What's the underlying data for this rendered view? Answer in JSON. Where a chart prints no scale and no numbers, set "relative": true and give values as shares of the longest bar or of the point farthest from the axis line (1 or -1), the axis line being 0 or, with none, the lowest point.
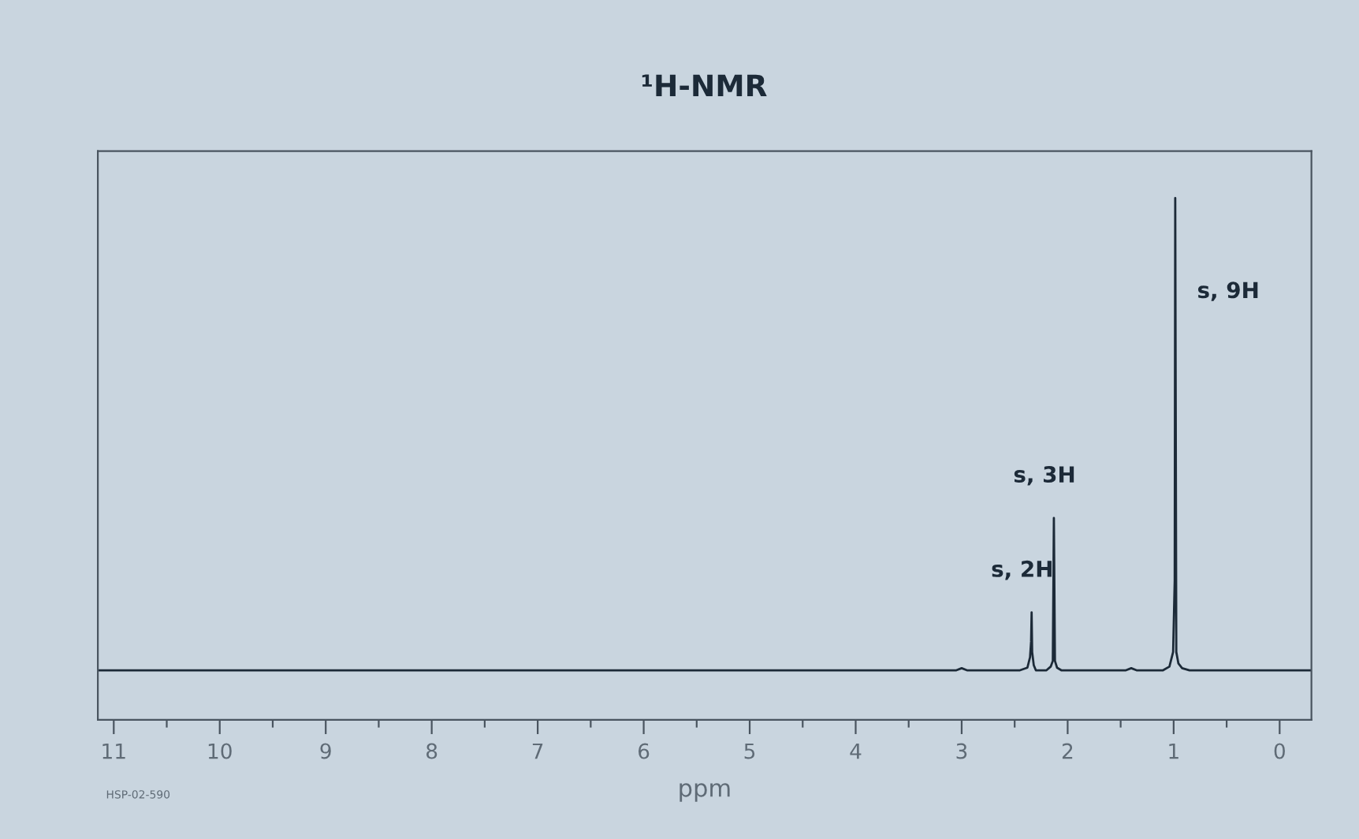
{
  "chart_data": {
    "type": "line",
    "title": "¹H-NMR",
    "xlabel": "ppm",
    "relative": true,
    "series": [
      {
        "color": "#1c2a38",
        "x": [
          11.15,
          6.0,
          3.05,
          3.0,
          2.95,
          2.45,
          2.38,
          2.355,
          2.345,
          2.34,
          2.335,
          2.32,
          2.3,
          2.2,
          2.16,
          2.14,
          2.13,
          2.12,
          2.1,
          2.06,
          1.45,
          1.4,
          1.35,
          1.1,
          1.04,
          1.005,
          0.99,
          0.985,
          0.975,
          0.955,
          0.92,
          0.85,
          -0.3
        ],
        "values": [
          0.095,
          0.095,
          0.095,
          0.099,
          0.095,
          0.095,
          0.1,
          0.12,
          0.15,
          0.206,
          0.13,
          0.105,
          0.095,
          0.095,
          0.102,
          0.113,
          0.387,
          0.113,
          0.1,
          0.095,
          0.095,
          0.099,
          0.095,
          0.095,
          0.102,
          0.13,
          0.267,
          1,
          0.13,
          0.108,
          0.099,
          0.095,
          0.095
        ]
      }
    ],
    "xlim": [
      11.15,
      -0.3
    ],
    "xticks": [
      11,
      {
        "value": 10.5,
        "label": null
      },
      10,
      {
        "value": 9.5,
        "label": null
      },
      9,
      {
        "value": 8.5,
        "label": null
      },
      8,
      {
        "value": 7.5,
        "label": null
      },
      7,
      {
        "value": 6.5,
        "label": null
      },
      6,
      {
        "value": 5.5,
        "label": null
      },
      5,
      {
        "value": 4.5,
        "label": null
      },
      4,
      {
        "value": 3.5,
        "label": null
      },
      3,
      {
        "value": 2.5,
        "label": null
      },
      2,
      {
        "value": 1.5,
        "label": null
      },
      1,
      {
        "value": 0.5,
        "label": null
      },
      0
    ],
    "tick_labels": "x",
    "annotations": [
      {
        "text": "s, 2H",
        "x": 2.34,
        "y": 0.206
      },
      {
        "text": "s, 3H",
        "x": 2.13,
        "y": 0.387
      },
      {
        "text": "s, 9H",
        "x": 0.986,
        "y": 0.82
      },
      "HSP-02-590"
    ]
  }
}
